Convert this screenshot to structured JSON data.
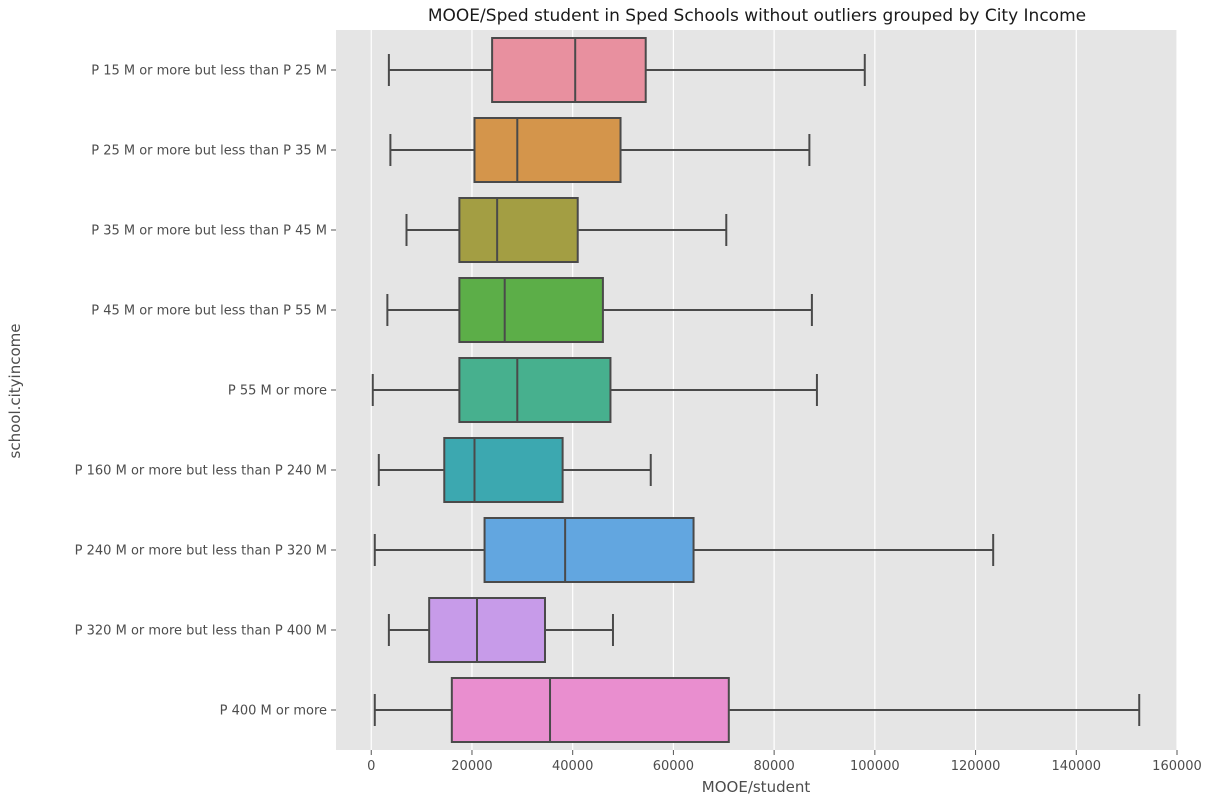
{
  "chart_data": {
    "type": "boxplot",
    "title": "MOOE/Sped student in Sped Schools without outliers grouped by City Income",
    "xlabel": "MOOE/student",
    "ylabel": "school.cityincome",
    "xlim": [
      -7000,
      160000
    ],
    "xticks": [
      0,
      20000,
      40000,
      60000,
      80000,
      100000,
      120000,
      140000,
      160000
    ],
    "xtick_labels": [
      "0",
      "20000",
      "40000",
      "60000",
      "80000",
      "100000",
      "120000",
      "140000",
      "160000"
    ],
    "grid": true,
    "background": "#e5e5e5",
    "categories": [
      "P 15 M or more but less than P 25 M",
      "P 25 M or more but less than P 35 M",
      "P 35 M or more but less than P 45 M",
      "P 45 M or more but less than P 55 M",
      "P 55 M or more",
      "P 160 M or more but less than P 240 M",
      "P 240 M or more but less than P 320 M",
      "P 320 M or more but less than P 400 M",
      "P 400 M or more"
    ],
    "boxes": [
      {
        "min": 3500,
        "q1": 24000,
        "median": 40500,
        "q3": 54500,
        "max": 98000,
        "color": "#e8909f"
      },
      {
        "min": 3800,
        "q1": 20500,
        "median": 29000,
        "q3": 49500,
        "max": 87000,
        "color": "#d4954b"
      },
      {
        "min": 7000,
        "q1": 17500,
        "median": 25000,
        "q3": 41000,
        "max": 70500,
        "color": "#a39e43"
      },
      {
        "min": 3200,
        "q1": 17500,
        "median": 26500,
        "q3": 46000,
        "max": 87500,
        "color": "#5cae48"
      },
      {
        "min": 300,
        "q1": 17500,
        "median": 29000,
        "q3": 47500,
        "max": 88500,
        "color": "#47b08e"
      },
      {
        "min": 1500,
        "q1": 14500,
        "median": 20500,
        "q3": 38000,
        "max": 55500,
        "color": "#3ca8b0"
      },
      {
        "min": 700,
        "q1": 22500,
        "median": 38500,
        "q3": 64000,
        "max": 123500,
        "color": "#62a6e0"
      },
      {
        "min": 3500,
        "q1": 11500,
        "median": 21000,
        "q3": 34500,
        "max": 48000,
        "color": "#c79be9"
      },
      {
        "min": 700,
        "q1": 16000,
        "median": 35500,
        "q3": 71000,
        "max": 152500,
        "color": "#e98ecf"
      }
    ]
  }
}
